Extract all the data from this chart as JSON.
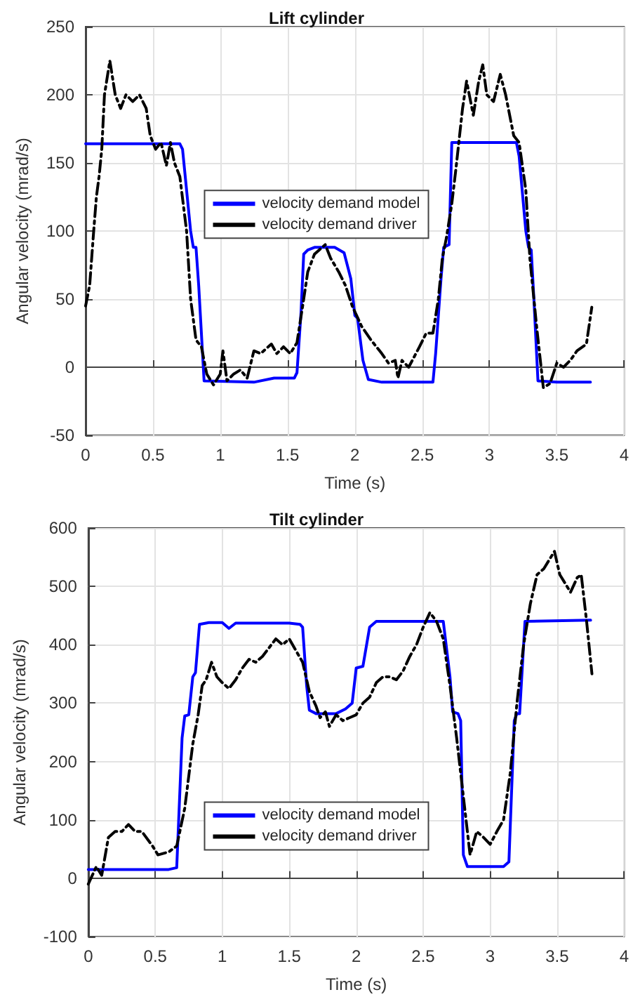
{
  "chart_data": [
    {
      "type": "line",
      "title": "Lift cylinder",
      "xlabel": "Time (s)",
      "ylabel": "Angular velocity (mrad/s)",
      "xlim": [
        0,
        4
      ],
      "xticks": [
        0,
        0.5,
        1,
        1.5,
        2,
        2.5,
        3,
        3.5,
        4
      ],
      "ylim": [
        -50,
        250
      ],
      "yticks": [
        -50,
        0,
        50,
        100,
        150,
        200,
        250
      ],
      "grid": true,
      "legend": "center",
      "marker": "none",
      "series": [
        {
          "name": "velocity demand model",
          "color": "#0000ff",
          "line_style": "solid",
          "x": [
            0,
            0.7,
            0.72,
            0.78,
            0.8,
            0.82,
            0.84,
            0.88,
            1.25,
            1.4,
            1.55,
            1.57,
            1.6,
            1.62,
            1.65,
            1.7,
            1.85,
            1.92,
            1.97,
            2.0,
            2.02,
            2.06,
            2.1,
            2.2,
            2.58,
            2.6,
            2.64,
            2.66,
            2.7,
            2.72,
            3.0,
            3.2,
            3.22,
            3.27,
            3.29,
            3.31,
            3.33,
            3.36,
            3.5,
            3.75
          ],
          "values": [
            164,
            164,
            160,
            100,
            88,
            88,
            60,
            -10,
            -11,
            -8,
            -8,
            -4,
            40,
            83,
            86,
            88,
            88,
            84,
            65,
            38,
            36,
            5,
            -9,
            -11,
            -11,
            10,
            65,
            88,
            90,
            165,
            165,
            165,
            155,
            100,
            88,
            86,
            50,
            -10,
            -11,
            -11
          ]
        },
        {
          "name": "velocity demand driver",
          "color": "#000000",
          "line_style": "dashed",
          "x": [
            0,
            0.03,
            0.06,
            0.08,
            0.1,
            0.12,
            0.14,
            0.18,
            0.22,
            0.26,
            0.3,
            0.35,
            0.4,
            0.45,
            0.48,
            0.52,
            0.56,
            0.6,
            0.63,
            0.66,
            0.7,
            0.75,
            0.78,
            0.82,
            0.86,
            0.9,
            0.95,
            1.0,
            1.02,
            1.05,
            1.1,
            1.15,
            1.2,
            1.25,
            1.3,
            1.38,
            1.42,
            1.47,
            1.52,
            1.57,
            1.62,
            1.65,
            1.7,
            1.78,
            1.82,
            1.88,
            1.93,
            1.98,
            2.05,
            2.12,
            2.2,
            2.25,
            2.3,
            2.32,
            2.35,
            2.4,
            2.48,
            2.53,
            2.58,
            2.62,
            2.65,
            2.68,
            2.72,
            2.75,
            2.8,
            2.83,
            2.86,
            2.88,
            2.92,
            2.95,
            2.98,
            3.03,
            3.08,
            3.12,
            3.18,
            3.22,
            3.27,
            3.3,
            3.35,
            3.4,
            3.45,
            3.48,
            3.5,
            3.55,
            3.6,
            3.65,
            3.72,
            3.76
          ],
          "values": [
            45,
            60,
            100,
            125,
            140,
            160,
            200,
            225,
            200,
            190,
            200,
            195,
            200,
            190,
            170,
            160,
            165,
            148,
            165,
            150,
            140,
            100,
            50,
            20,
            15,
            -5,
            -13,
            -5,
            12,
            -10,
            -5,
            -2,
            -8,
            12,
            10,
            17,
            10,
            15,
            10,
            18,
            50,
            70,
            83,
            90,
            80,
            70,
            60,
            45,
            30,
            20,
            10,
            3,
            5,
            -8,
            5,
            0,
            15,
            25,
            25,
            50,
            80,
            95,
            120,
            145,
            190,
            210,
            195,
            185,
            210,
            222,
            200,
            195,
            215,
            200,
            170,
            165,
            130,
            80,
            30,
            -15,
            -12,
            -3,
            3,
            0,
            5,
            12,
            17,
            44
          ]
        }
      ]
    },
    {
      "type": "line",
      "title": "Tilt cylinder",
      "xlabel": "Time (s)",
      "ylabel": "Angular velocity (mrad/s)",
      "xlim": [
        0,
        4
      ],
      "xticks": [
        0,
        0.5,
        1,
        1.5,
        2,
        2.5,
        3,
        3.5,
        4
      ],
      "ylim": [
        -100,
        600
      ],
      "yticks": [
        -100,
        0,
        100,
        200,
        300,
        400,
        500,
        600
      ],
      "grid": true,
      "legend": "bottom",
      "marker": "none",
      "series": [
        {
          "name": "velocity demand model",
          "color": "#0000ff",
          "line_style": "solid",
          "x": [
            0,
            0.6,
            0.66,
            0.7,
            0.72,
            0.75,
            0.78,
            0.8,
            0.83,
            0.9,
            1.0,
            1.05,
            1.1,
            1.5,
            1.58,
            1.6,
            1.63,
            1.65,
            1.7,
            1.85,
            1.92,
            1.97,
            2.0,
            2.05,
            2.1,
            2.15,
            2.65,
            2.7,
            2.72,
            2.76,
            2.78,
            2.8,
            2.83,
            3.1,
            3.14,
            3.18,
            3.2,
            3.22,
            3.26,
            3.75
          ],
          "values": [
            15,
            15,
            18,
            240,
            278,
            280,
            345,
            352,
            435,
            438,
            438,
            428,
            437,
            437,
            435,
            430,
            330,
            288,
            282,
            282,
            290,
            300,
            360,
            363,
            430,
            440,
            440,
            345,
            285,
            282,
            270,
            40,
            20,
            20,
            28,
            270,
            282,
            282,
            440,
            442
          ]
        },
        {
          "name": "velocity demand driver",
          "color": "#000000",
          "line_style": "dashed",
          "x": [
            0,
            0.03,
            0.06,
            0.1,
            0.15,
            0.2,
            0.25,
            0.3,
            0.35,
            0.4,
            0.48,
            0.52,
            0.6,
            0.66,
            0.72,
            0.78,
            0.82,
            0.85,
            0.88,
            0.92,
            0.96,
            1.0,
            1.05,
            1.1,
            1.15,
            1.2,
            1.25,
            1.3,
            1.35,
            1.4,
            1.45,
            1.5,
            1.55,
            1.6,
            1.65,
            1.7,
            1.73,
            1.77,
            1.8,
            1.85,
            1.9,
            1.95,
            2.0,
            2.05,
            2.1,
            2.15,
            2.2,
            2.25,
            2.3,
            2.35,
            2.4,
            2.45,
            2.5,
            2.55,
            2.6,
            2.65,
            2.7,
            2.75,
            2.8,
            2.85,
            2.9,
            2.95,
            3.0,
            3.05,
            3.1,
            3.15,
            3.2,
            3.25,
            3.3,
            3.35,
            3.4,
            3.48,
            3.52,
            3.6,
            3.65,
            3.68,
            3.72,
            3.76
          ],
          "values": [
            -10,
            5,
            20,
            5,
            70,
            80,
            80,
            92,
            80,
            80,
            55,
            40,
            45,
            55,
            120,
            230,
            280,
            330,
            340,
            370,
            345,
            335,
            325,
            340,
            360,
            375,
            370,
            380,
            395,
            410,
            400,
            410,
            390,
            370,
            320,
            295,
            275,
            285,
            260,
            280,
            270,
            275,
            280,
            300,
            310,
            335,
            345,
            345,
            340,
            355,
            380,
            400,
            430,
            455,
            440,
            410,
            330,
            240,
            140,
            40,
            80,
            70,
            58,
            80,
            100,
            180,
            300,
            400,
            470,
            520,
            530,
            560,
            520,
            490,
            515,
            520,
            440,
            350
          ]
        }
      ]
    }
  ]
}
